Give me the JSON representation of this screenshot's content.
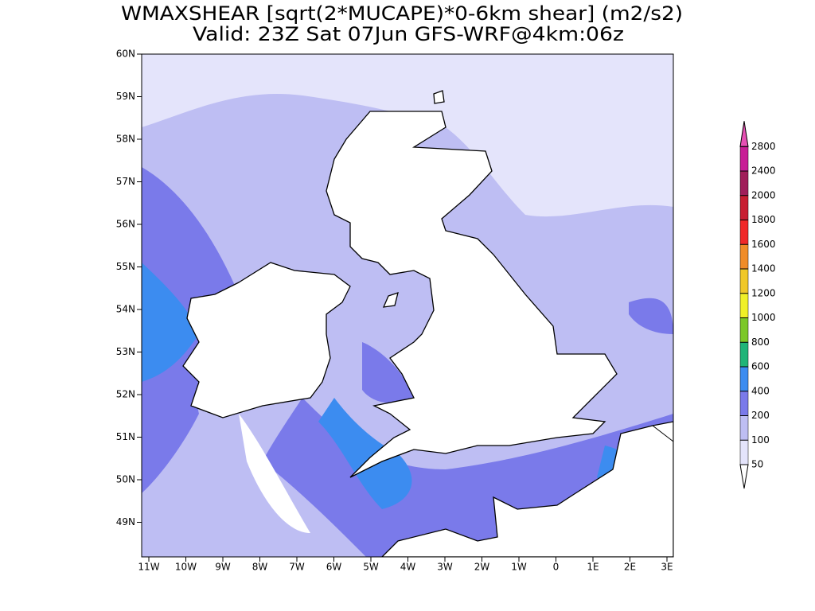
{
  "title": "WMAXSHEAR [sqrt(2*MUCAPE)*0-6km shear] (m2/s2)",
  "subtitle": "Valid: 23Z Sat 07Jun GFS-WRF@4km:06z",
  "latitude_labels": [
    "60N",
    "59N",
    "58N",
    "57N",
    "56N",
    "55N",
    "54N",
    "53N",
    "52N",
    "51N",
    "50N",
    "49N"
  ],
  "longitude_labels": [
    "11W",
    "10W",
    "9W",
    "8W",
    "7W",
    "6W",
    "5W",
    "4W",
    "3W",
    "2W",
    "1W",
    "0",
    "1E",
    "2E",
    "3E"
  ],
  "colorbar": {
    "levels": [
      50,
      100,
      200,
      400,
      600,
      800,
      1000,
      1200,
      1400,
      1600,
      1800,
      2000,
      2400,
      2800
    ],
    "colors": [
      "#e4e4fb",
      "#bebef3",
      "#7a7aea",
      "#3c8cf0",
      "#20b478",
      "#7cc828",
      "#f0f028",
      "#f0c828",
      "#f08c28",
      "#f02828",
      "#c81e32",
      "#a01e5a",
      "#c81e96",
      "#e650b4"
    ],
    "below_color": "#ffffff"
  }
}
